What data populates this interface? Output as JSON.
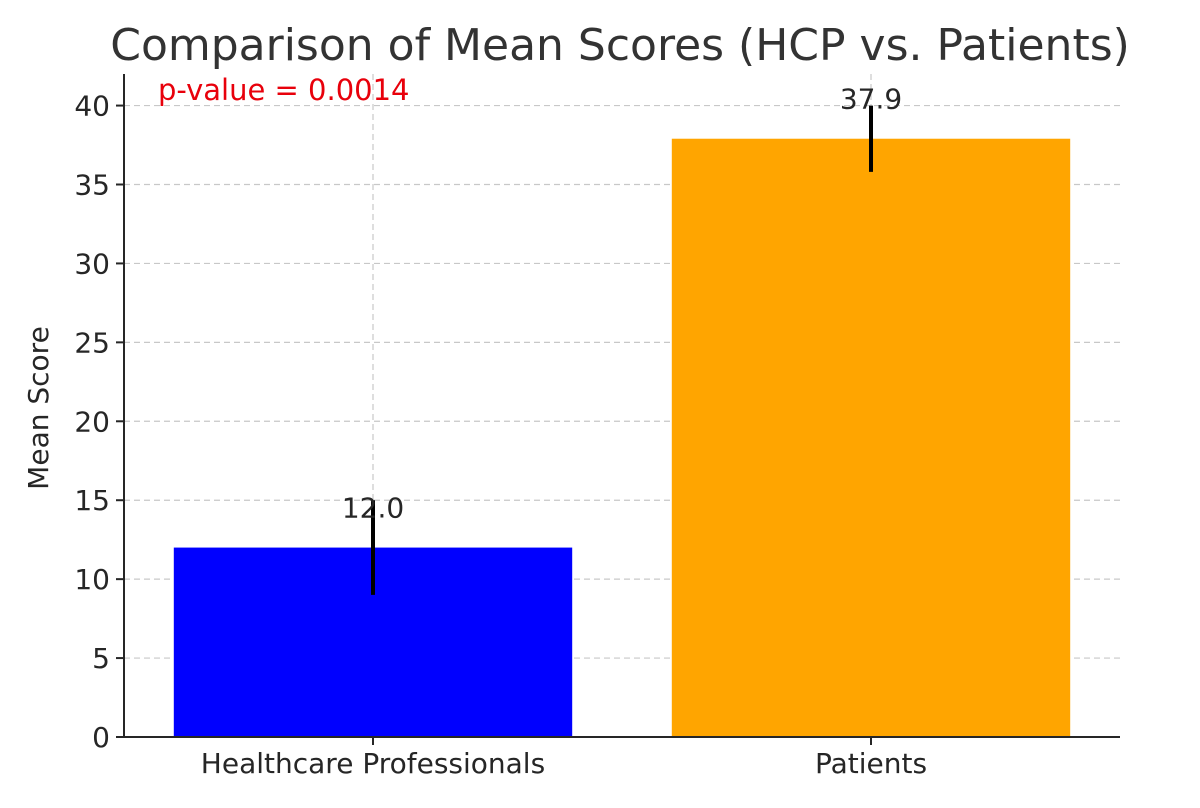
{
  "chart_data": {
    "type": "bar",
    "title": "Comparison of Mean Scores (HCP vs. Patients)",
    "xlabel": "",
    "ylabel": "Mean Score",
    "categories": [
      "Healthcare Professionals",
      "Patients"
    ],
    "values": [
      12.0,
      37.9
    ],
    "value_labels": [
      "12.0",
      "37.9"
    ],
    "error": [
      3.0,
      2.1
    ],
    "colors": [
      "#0000ff",
      "#ffa500"
    ],
    "ylim": [
      0,
      42
    ],
    "yticks": [
      0,
      5,
      10,
      15,
      20,
      25,
      30,
      35,
      40
    ],
    "grid": true,
    "annotation": {
      "text": "p-value = 0.0014",
      "color": "#e8000b"
    }
  }
}
